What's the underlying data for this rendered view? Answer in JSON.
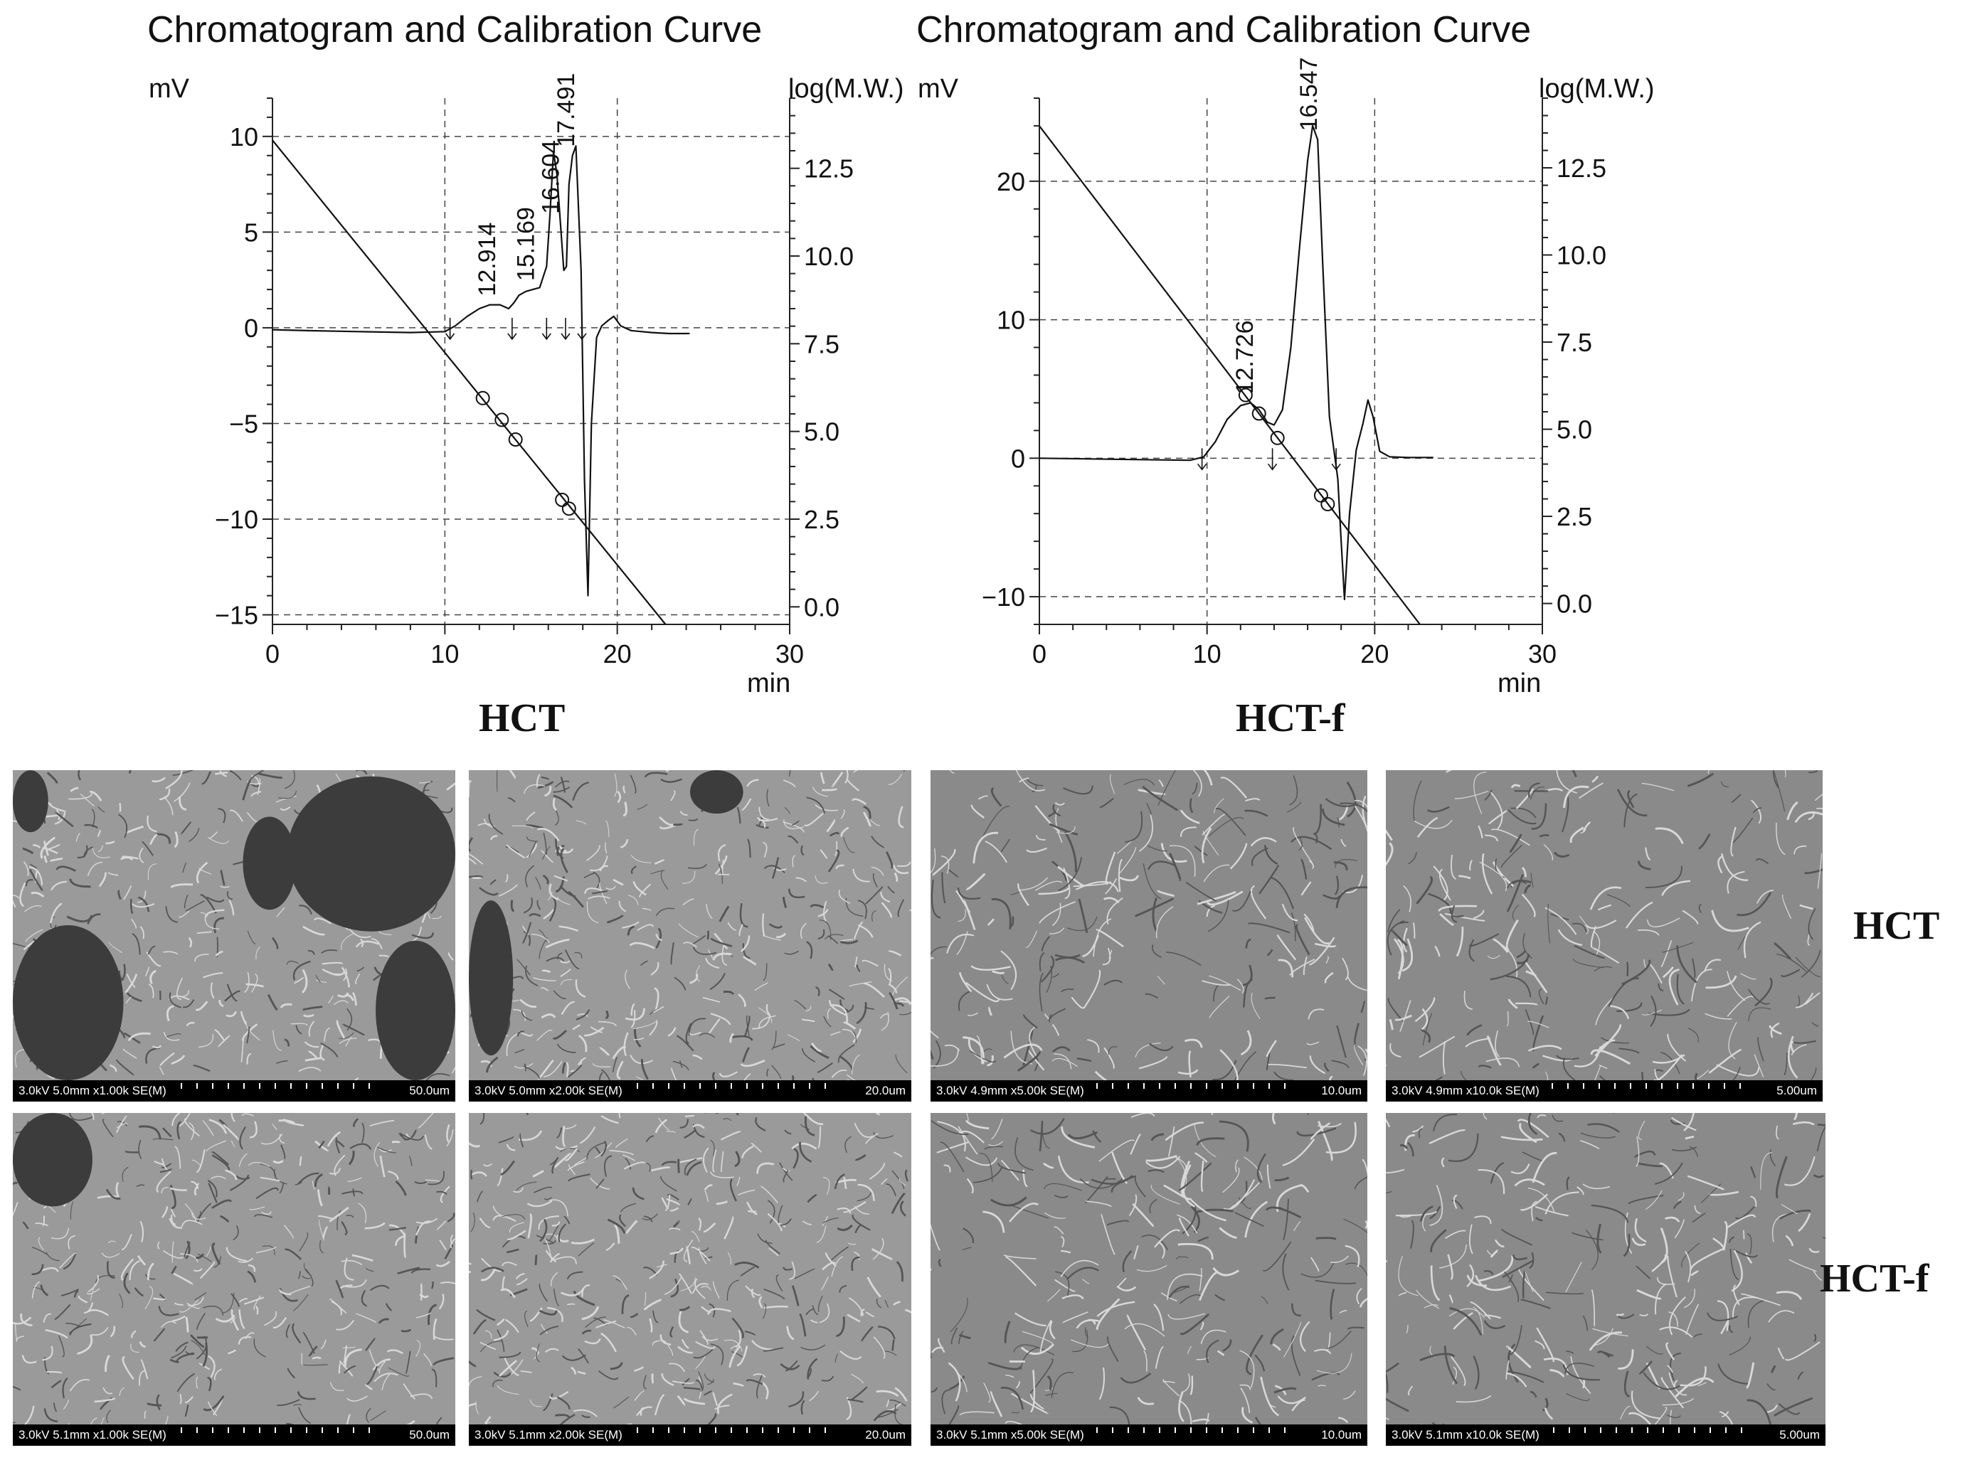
{
  "chart_data": [
    {
      "type": "line",
      "title": "Chromatogram and Calibration Curve",
      "ylabel": "mV",
      "y2label": "log(M.W.)",
      "xlabel": "min",
      "xlim": [
        0,
        30
      ],
      "ylim": [
        -15.5,
        12
      ],
      "y2lim": [
        -0.5,
        14.5
      ],
      "xticks": [
        0,
        10,
        20,
        30
      ],
      "yticks": [
        10,
        5,
        0,
        -5,
        -10,
        -15
      ],
      "y2ticks": [
        "12.5",
        "10.0",
        "7.5",
        "5.0",
        "2.5",
        "0.0"
      ],
      "grid": true,
      "series": [
        {
          "role": "chromatogram",
          "x": [
            0,
            2,
            5,
            8,
            10,
            10.6,
            11.3,
            12.0,
            12.6,
            13.2,
            13.7,
            14.0,
            14.3,
            14.7,
            15.1,
            15.5,
            15.9,
            16.1,
            16.3,
            16.5,
            16.7,
            16.9,
            17.05,
            17.2,
            17.4,
            17.6,
            17.9,
            18.1,
            18.3,
            18.5,
            18.8,
            19.1,
            19.5,
            19.8,
            20.2,
            20.8,
            22,
            23,
            24.2
          ],
          "y": [
            -0.1,
            -0.15,
            -0.2,
            -0.25,
            -0.2,
            0.1,
            0.6,
            1.0,
            1.2,
            1.2,
            1.0,
            1.3,
            1.7,
            1.9,
            2.0,
            2.1,
            3.2,
            6.0,
            9.2,
            8.0,
            5.5,
            3.0,
            3.2,
            7.5,
            9.0,
            9.5,
            3.0,
            -8.0,
            -14.0,
            -5.0,
            -0.5,
            0.1,
            0.4,
            0.6,
            0.1,
            -0.15,
            -0.25,
            -0.3,
            -0.3
          ]
        },
        {
          "role": "calibration",
          "x": [
            0,
            22.8
          ],
          "y2": [
            13.3,
            -0.5
          ]
        }
      ],
      "calibration_points": {
        "x": [
          12.2,
          13.3,
          14.1,
          16.8,
          17.2
        ],
        "y2": [
          5.95,
          5.33,
          4.77,
          3.05,
          2.8
        ]
      },
      "peak_labels": [
        {
          "x": 12.914,
          "text": "12.914"
        },
        {
          "x": 15.169,
          "text": "15.169"
        },
        {
          "x": 16.604,
          "text": "16.604"
        },
        {
          "x": 17.491,
          "text": "17.491"
        }
      ],
      "markers_x": [
        10.3,
        13.9,
        15.9,
        17.0,
        17.95
      ]
    },
    {
      "type": "line",
      "title": "Chromatogram and Calibration Curve",
      "ylabel": "mV",
      "y2label": "log(M.W.)",
      "xlabel": "min",
      "xlim": [
        0,
        30
      ],
      "ylim": [
        -12,
        26
      ],
      "y2lim": [
        -0.6,
        14.5
      ],
      "xticks": [
        0,
        10,
        20,
        30
      ],
      "yticks": [
        20,
        10,
        0,
        -10
      ],
      "y2ticks": [
        "12.5",
        "10.0",
        "7.5",
        "5.0",
        "2.5",
        "0.0"
      ],
      "grid": true,
      "series": [
        {
          "role": "chromatogram",
          "x": [
            0,
            3,
            6,
            9,
            9.8,
            10.5,
            11.2,
            12.0,
            12.6,
            13.1,
            13.6,
            14.0,
            14.5,
            15.0,
            15.5,
            16.0,
            16.3,
            16.6,
            16.9,
            17.3,
            17.8,
            18.0,
            18.2,
            18.5,
            18.9,
            19.3,
            19.6,
            19.9,
            20.3,
            20.9,
            22,
            23.5
          ],
          "y": [
            0,
            -0.05,
            -0.1,
            -0.15,
            0.1,
            1.2,
            2.8,
            3.8,
            4.0,
            3.5,
            2.6,
            2.4,
            3.5,
            8.0,
            15.0,
            21.5,
            24.0,
            23.0,
            14.0,
            3.0,
            -1.5,
            -6.0,
            -10.2,
            -4.0,
            0.6,
            2.5,
            4.2,
            3.0,
            0.5,
            0.1,
            0.05,
            0.05
          ]
        },
        {
          "role": "calibration",
          "x": [
            0,
            22.7
          ],
          "y2": [
            13.7,
            -0.6
          ]
        }
      ],
      "calibration_points": {
        "x": [
          12.3,
          13.1,
          14.2,
          16.8,
          17.2
        ],
        "y2": [
          5.98,
          5.45,
          4.75,
          3.1,
          2.85
        ]
      },
      "peak_labels": [
        {
          "x": 12.726,
          "text": "12.726"
        },
        {
          "x": 16.547,
          "text": "16.547"
        }
      ],
      "markers_x": [
        9.7,
        13.9,
        17.7
      ]
    }
  ],
  "sample_labels": [
    "HCT",
    "HCT-f"
  ],
  "row_labels": [
    "HCT",
    "HCT-f"
  ],
  "sem_images": [
    {
      "condition": "3.0kV 5.0mm x1.00k SE(M)",
      "scale": "50.0um"
    },
    {
      "condition": "3.0kV 5.0mm x2.00k SE(M)",
      "scale": "20.0um"
    },
    {
      "condition": "3.0kV 4.9mm x5.00k SE(M)",
      "scale": "10.0um"
    },
    {
      "condition": "3.0kV 4.9mm x10.0k SE(M)",
      "scale": "5.00um"
    },
    {
      "condition": "3.0kV 5.1mm x1.00k SE(M)",
      "scale": "50.0um"
    },
    {
      "condition": "3.0kV 5.1mm x2.00k SE(M)",
      "scale": "20.0um"
    },
    {
      "condition": "3.0kV 5.1mm x5.00k SE(M)",
      "scale": "10.0um"
    },
    {
      "condition": "3.0kV 5.1mm x10.0k SE(M)",
      "scale": "5.00um"
    }
  ]
}
